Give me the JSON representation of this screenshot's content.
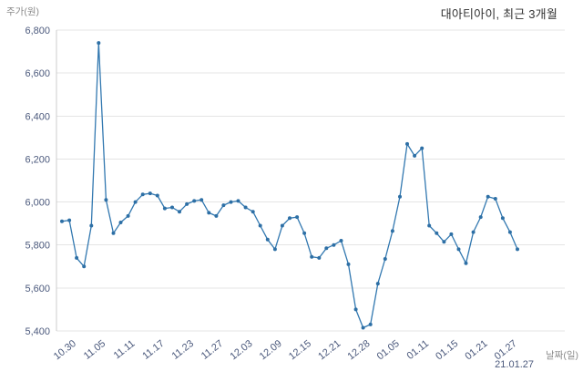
{
  "page": {
    "title": "대아티아이, 최근 3개월",
    "y_axis_name": "주가(원)",
    "x_axis_name": "날짜(일)",
    "last_date_label": "21.01.27"
  },
  "colors": {
    "line": "#3278b0",
    "point": "#2d6fa5",
    "grid": "#e4e4e4",
    "axis_line": "#cccccc",
    "tick_text": "#4c5a7d",
    "axis_name_text": "#8a8a8a",
    "title_text": "#333333",
    "background": "#ffffff"
  },
  "chart_data": {
    "type": "line",
    "title": "대아티아이, 최근 3개월",
    "xlabel": "날짜(일)",
    "ylabel": "주가(원)",
    "ylim": [
      5400,
      6800
    ],
    "grid": "horizontal",
    "legend": "none",
    "y_ticks": [
      6800,
      6600,
      6400,
      6200,
      6000,
      5800,
      5600,
      5400
    ],
    "y_tick_labels": [
      "6,800",
      "6,600",
      "6,400",
      "6,200",
      "6,000",
      "5,800",
      "5,600",
      "5,400"
    ],
    "x_tick_labels": [
      "10.30",
      "11.05",
      "11.11",
      "11.17",
      "11.23",
      "11.27",
      "12.03",
      "12.09",
      "12.15",
      "12.21",
      "12.28",
      "01.05",
      "01.11",
      "01.15",
      "01.21",
      "01.27"
    ],
    "x_tick_indices": [
      2,
      6,
      10,
      14,
      18,
      22,
      26,
      30,
      34,
      38,
      42,
      46,
      50,
      54,
      58,
      62
    ],
    "last_x_label_with_year": "21.01.27",
    "series": [
      {
        "name": "주가",
        "values": [
          5910,
          5915,
          5740,
          5700,
          5890,
          6740,
          6010,
          5855,
          5905,
          5935,
          6000,
          6035,
          6040,
          6030,
          5970,
          5975,
          5955,
          5990,
          6005,
          6010,
          5950,
          5935,
          5985,
          6000,
          6005,
          5975,
          5955,
          5890,
          5825,
          5780,
          5890,
          5925,
          5930,
          5855,
          5745,
          5740,
          5785,
          5800,
          5820,
          5710,
          5500,
          5415,
          5430,
          5620,
          5735,
          5865,
          6025,
          6270,
          6215,
          6250,
          5890,
          5855,
          5815,
          5850,
          5780,
          5715,
          5860,
          5930,
          6025,
          6015,
          5925,
          5860,
          5780
        ]
      }
    ]
  }
}
